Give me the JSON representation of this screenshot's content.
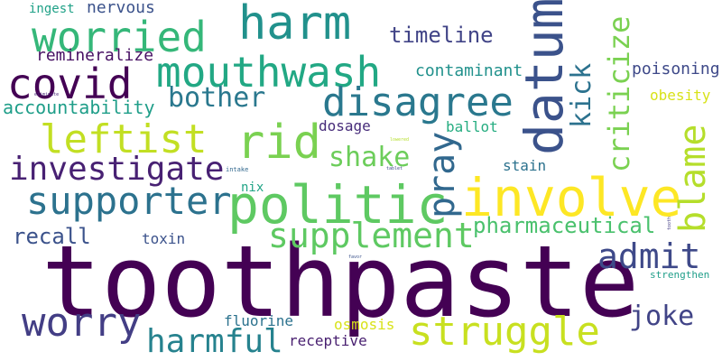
{
  "words": [
    {
      "text": "toothpaste",
      "color": "#440154"
    },
    {
      "text": "involve",
      "color": "#fde725"
    },
    {
      "text": "politic",
      "color": "#5ec962"
    },
    {
      "text": "harm",
      "color": "#21918c"
    },
    {
      "text": "worried",
      "color": "#35b779"
    },
    {
      "text": "mouthwash",
      "color": "#22a884"
    },
    {
      "text": "covid",
      "color": "#440154"
    },
    {
      "text": "disagree",
      "color": "#2a788e"
    },
    {
      "text": "datum",
      "color": "#3b528b"
    },
    {
      "text": "rid",
      "color": "#7ad151"
    },
    {
      "text": "leftist",
      "color": "#c2df23"
    },
    {
      "text": "investigate",
      "color": "#482173"
    },
    {
      "text": "supporter",
      "color": "#2c728e"
    },
    {
      "text": "supplement",
      "color": "#5ec962"
    },
    {
      "text": "struggle",
      "color": "#c8e020"
    },
    {
      "text": "worry",
      "color": "#433e85"
    },
    {
      "text": "harmful",
      "color": "#26828e"
    },
    {
      "text": "blame",
      "color": "#b5de2b"
    },
    {
      "text": "pray",
      "color": "#31688e"
    },
    {
      "text": "criticize",
      "color": "#7ad151"
    },
    {
      "text": "kick",
      "color": "#2c728e"
    },
    {
      "text": "admit",
      "color": "#3e4989"
    },
    {
      "text": "joke",
      "color": "#414487"
    },
    {
      "text": "bother",
      "color": "#2a788e"
    },
    {
      "text": "shake",
      "color": "#6ccd5a"
    },
    {
      "text": "timeline",
      "color": "#414487"
    },
    {
      "text": "pharmaceutical",
      "color": "#4ac16d"
    },
    {
      "text": "recall",
      "color": "#3b528b"
    },
    {
      "text": "accountability",
      "color": "#1f9e89"
    },
    {
      "text": "remineralize",
      "color": "#471063"
    },
    {
      "text": "nervous",
      "color": "#3b528b"
    },
    {
      "text": "contaminant",
      "color": "#21918c"
    },
    {
      "text": "poisoning",
      "color": "#3e4989"
    },
    {
      "text": "obesity",
      "color": "#d8e219"
    },
    {
      "text": "dosage",
      "color": "#472c7a"
    },
    {
      "text": "ballot",
      "color": "#26ad81"
    },
    {
      "text": "stain",
      "color": "#2c728e"
    },
    {
      "text": "toxin",
      "color": "#3b528b"
    },
    {
      "text": "nix",
      "color": "#20a486"
    },
    {
      "text": "fluorine",
      "color": "#2c728e"
    },
    {
      "text": "osmosis",
      "color": "#d8e219"
    },
    {
      "text": "receptive",
      "color": "#481f70"
    },
    {
      "text": "ingest",
      "color": "#1fa187"
    },
    {
      "text": "strengthen",
      "color": "#1f9e89"
    },
    {
      "text": "intake",
      "color": "#31688e"
    },
    {
      "text": "tablet",
      "color": "#3e4989"
    },
    {
      "text": "tooth",
      "color": "#433e85"
    },
    {
      "text": "favor",
      "color": "#3b528b"
    },
    {
      "text": "eliminate",
      "color": "#482878"
    },
    {
      "text": "lowered",
      "color": "#b5de2b"
    }
  ]
}
